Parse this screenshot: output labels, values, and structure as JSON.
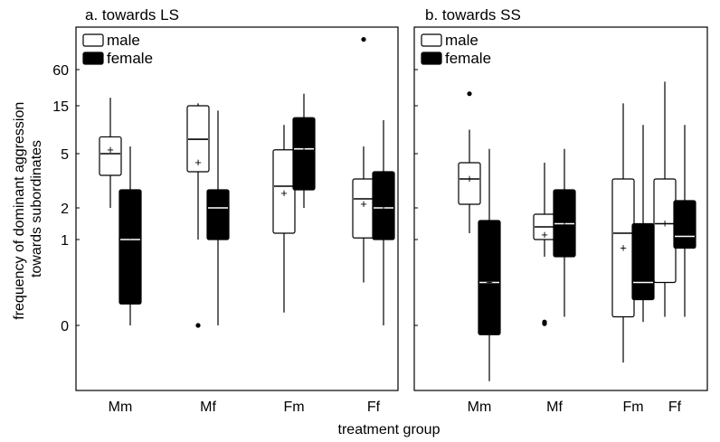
{
  "chart_data": [
    {
      "type": "boxplot",
      "title": "a. towards LS",
      "xlabel": "treatment group",
      "ylabel": "frequency of dominant aggression towards subordinates",
      "yscale": "transformed (labels 0, 1, 2, 5, 15, 60)",
      "ytick_labels": [
        "60",
        "15",
        "5",
        "2",
        "1",
        "0"
      ],
      "categories": [
        "Mm",
        "Mf",
        "Fm",
        "Ff"
      ],
      "legend": {
        "position": "top-left",
        "entries": [
          {
            "label": "male",
            "fill": "#ffffff"
          },
          {
            "label": "female",
            "fill": "#000000"
          }
        ]
      },
      "series": [
        {
          "name": "male",
          "boxes": [
            {
              "category": "Mm",
              "min": 2.0,
              "q1": 3.8,
              "median": 5.0,
              "q3": 8.5,
              "max": 25,
              "mean": 5.8,
              "outliers": []
            },
            {
              "category": "Mf",
              "min": 1.0,
              "q1": 4.0,
              "median": 8.0,
              "q3": 15.0,
              "max": 18,
              "mean": 4.5,
              "outliers": [
                0
              ]
            },
            {
              "category": "Fm",
              "min": 0.15,
              "q1": 1.2,
              "median": 3.2,
              "q3": 5.8,
              "max": 11,
              "mean": 2.8,
              "outliers": []
            },
            {
              "category": "Ff",
              "min": 0.5,
              "q1": 1.05,
              "median": 2.5,
              "q3": 3.6,
              "max": 6.5,
              "mean": 2.2,
              "outliers": [
                500
              ]
            }
          ]
        },
        {
          "name": "female",
          "boxes": [
            {
              "category": "Mm",
              "min": 0,
              "q1": 0.25,
              "median": 1.0,
              "q3": 3.0,
              "max": 6.5,
              "mean": 1.1,
              "outliers": []
            },
            {
              "category": "Mf",
              "min": 0,
              "q1": 1.0,
              "median": 2.0,
              "q3": 3.0,
              "max": 14,
              "mean": 1.7,
              "outliers": []
            },
            {
              "category": "Fm",
              "min": 2.0,
              "q1": 3.0,
              "median": 6.0,
              "q3": 12.5,
              "max": 30,
              "mean": 6.2,
              "outliers": []
            },
            {
              "category": "Ff",
              "min": 0,
              "q1": 1.0,
              "median": 2.0,
              "q3": 4.0,
              "max": 12,
              "mean": 2.1,
              "outliers": []
            }
          ]
        }
      ]
    },
    {
      "type": "boxplot",
      "title": "b. towards SS",
      "xlabel": "treatment group",
      "ylabel": "frequency of dominant aggression towards subordinates",
      "yscale": "transformed (labels 0, 1, 2, 5, 15, 60)",
      "categories": [
        "Mm",
        "Mf",
        "Fm",
        "Ff"
      ],
      "legend": {
        "position": "top-left",
        "entries": [
          {
            "label": "male",
            "fill": "#ffffff"
          },
          {
            "label": "female",
            "fill": "#000000"
          }
        ]
      },
      "series": [
        {
          "name": "male",
          "boxes": [
            {
              "category": "Mm",
              "min": 1.2,
              "q1": 2.2,
              "median": 3.6,
              "q3": 4.5,
              "max": 10,
              "mean": 3.6,
              "outliers": [
                30
              ]
            },
            {
              "category": "Mf",
              "min": 0.8,
              "q1": 1.0,
              "median": 1.4,
              "q3": 1.8,
              "max": 4.5,
              "mean": 1.15,
              "outliers": [
                0.02,
                0.04
              ]
            },
            {
              "category": "Fm",
              "min": -0.2,
              "q1": 0.1,
              "median": 1.2,
              "q3": 3.6,
              "max": 18,
              "mean": 0.9,
              "outliers": []
            },
            {
              "category": "Ff",
              "min": 0.1,
              "q1": 0.5,
              "median": 1.5,
              "q3": 3.6,
              "max": 45,
              "mean": 1.5,
              "outliers": []
            }
          ]
        },
        {
          "name": "female",
          "boxes": [
            {
              "category": "Mm",
              "min": -0.3,
              "q1": -0.05,
              "median": 0.5,
              "q3": 1.6,
              "max": 6,
              "mean": 0.5,
              "outliers": []
            },
            {
              "category": "Mf",
              "min": 0.1,
              "q1": 0.8,
              "median": 1.5,
              "q3": 3.0,
              "max": 6,
              "mean": 1.45,
              "outliers": []
            },
            {
              "category": "Fm",
              "min": 0.04,
              "q1": 0.3,
              "median": 0.5,
              "q3": 1.5,
              "max": 11,
              "mean": 0.85,
              "outliers": []
            },
            {
              "category": "Ff",
              "min": 0.1,
              "q1": 0.9,
              "median": 1.1,
              "q3": 2.4,
              "max": 11,
              "mean": 1.5,
              "outliers": []
            }
          ]
        }
      ]
    }
  ]
}
